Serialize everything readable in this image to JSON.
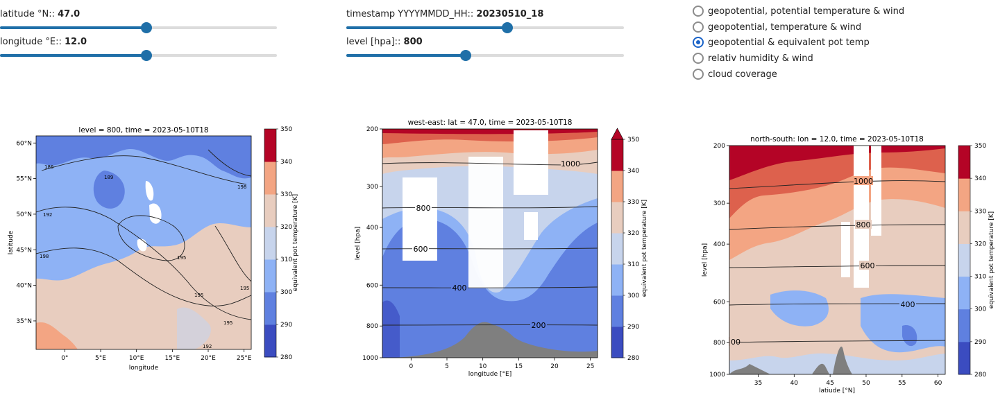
{
  "sliders": [
    {
      "id": "lat",
      "label": "latitude °N:: ",
      "value": "47.0",
      "fraction": 0.53
    },
    {
      "id": "lon",
      "label": "longitude °E:: ",
      "value": "12.0",
      "fraction": 0.53
    },
    {
      "id": "time",
      "label": "timestamp YYYYMMDD_HH:: ",
      "value": "20230510_18",
      "fraction": 0.58
    },
    {
      "id": "lev",
      "label": "level [hpa]:: ",
      "value": "800",
      "fraction": 0.43
    }
  ],
  "radio": {
    "selected": 2,
    "options": [
      "geopotential, potential temperature & wind",
      "geopotential, temperature & wind",
      "geopotential & equivalent pot temp",
      "relativ humidity & wind",
      "cloud coverage"
    ]
  },
  "colors": {
    "accent": "#1f6fa8",
    "levels": [
      "#3b4cc0",
      "#5f80e0",
      "#8eb2f5",
      "#c7d4ec",
      "#e8cdbf",
      "#f3a583",
      "#dd614d",
      "#b40426"
    ]
  },
  "chart_data": [
    {
      "type": "heatmap",
      "title": "level = 800, time = 2023-05-10T18",
      "xlabel": "longitude",
      "ylabel": "latitude",
      "x_ticks": [
        "0°",
        "5°E",
        "10°E",
        "15°E",
        "20°E",
        "25°E"
      ],
      "x_tick_values": [
        0,
        5,
        10,
        15,
        20,
        25
      ],
      "y_ticks": [
        "35°N",
        "40°N",
        "45°N",
        "50°N",
        "55°N",
        "60°N"
      ],
      "y_tick_values": [
        35,
        40,
        45,
        50,
        55,
        60
      ],
      "xlim": [
        -4,
        26
      ],
      "ylim": [
        31,
        61
      ],
      "contour_labels": [
        "186",
        "189",
        "192",
        "195",
        "198",
        "198",
        "195",
        "195",
        "192",
        "195"
      ],
      "colorbar": {
        "label": "equivalent pot temperature [K]",
        "ticks": [
          "280",
          "290",
          "300",
          "310",
          "320",
          "330",
          "340",
          "350"
        ],
        "extend": "none"
      }
    },
    {
      "type": "heatmap",
      "title": "west-east: lat = 47.0, time = 2023-05-10T18",
      "xlabel": "longitude [°E]",
      "ylabel": "level [hpa]",
      "x_ticks": [
        "0",
        "5",
        "10",
        "15",
        "20",
        "25"
      ],
      "x_tick_values": [
        0,
        5,
        10,
        15,
        20,
        25
      ],
      "y_ticks": [
        "200",
        "300",
        "400",
        "600",
        "800",
        "1000"
      ],
      "y_tick_values": [
        200,
        300,
        400,
        600,
        800,
        1000
      ],
      "xlim": [
        -4,
        26
      ],
      "ylim": [
        1000,
        200
      ],
      "contour_labels": [
        "1000",
        "800",
        "600",
        "400",
        "200"
      ],
      "colorbar": {
        "label": "equivalent pot temperature [K]",
        "ticks": [
          "280",
          "290",
          "300",
          "310",
          "320",
          "330",
          "340",
          "350"
        ],
        "extend": "max"
      }
    },
    {
      "type": "heatmap",
      "title": "north-south: lon = 12.0, time = 2023-05-10T18",
      "xlabel": "latiude [°N]",
      "ylabel": "level [hpa]",
      "x_ticks": [
        "35",
        "40",
        "45",
        "50",
        "55",
        "60"
      ],
      "x_tick_values": [
        35,
        40,
        45,
        50,
        55,
        60
      ],
      "y_ticks": [
        "200",
        "300",
        "400",
        "600",
        "800",
        "1000"
      ],
      "y_tick_values": [
        200,
        300,
        400,
        600,
        800,
        1000
      ],
      "xlim": [
        31,
        61
      ],
      "ylim": [
        1000,
        200
      ],
      "contour_labels": [
        "1000",
        "800",
        "600",
        "400",
        "00"
      ],
      "colorbar": {
        "label": "equivalent pot temperature [K]",
        "ticks": [
          "280",
          "290",
          "300",
          "310",
          "320",
          "330",
          "340",
          "350"
        ],
        "extend": "none"
      }
    }
  ]
}
